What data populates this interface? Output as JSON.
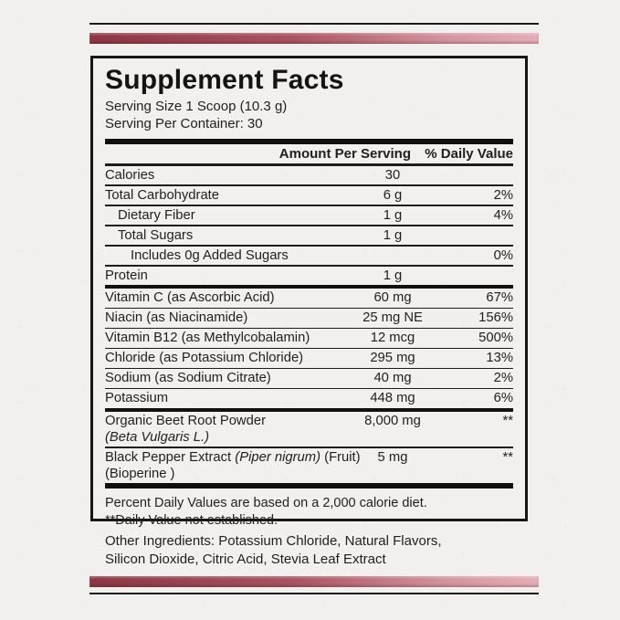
{
  "decorations": {
    "accent_dark": "#8b3642",
    "accent_light": "#e3aeb8",
    "rule_color": "#1c1c1c"
  },
  "label": {
    "title": "Supplement Facts",
    "serving_size": "Serving Size 1 Scoop (10.3 g)",
    "servings_per_container": "Serving Per Container: 30",
    "header": {
      "amount": "Amount Per Serving",
      "daily_value": "% Daily Value"
    },
    "rows": [
      {
        "name": [
          [
            "Calories",
            "r"
          ]
        ],
        "amount": "30",
        "dv": "",
        "indent": 0,
        "sep": "thin"
      },
      {
        "name": [
          [
            "Total Carbohydrate",
            "r"
          ]
        ],
        "amount": "6 g",
        "dv": "2%",
        "indent": 0,
        "sep": "thin"
      },
      {
        "name": [
          [
            "Dietary Fiber",
            "r"
          ]
        ],
        "amount": "1 g",
        "dv": "4%",
        "indent": 1,
        "sep": "thin"
      },
      {
        "name": [
          [
            "Total Sugars",
            "r"
          ]
        ],
        "amount": "1 g",
        "dv": "",
        "indent": 1,
        "sep": "thin"
      },
      {
        "name": [
          [
            "Includes 0g Added Sugars",
            "r"
          ]
        ],
        "amount": "",
        "dv": "0%",
        "indent": 2,
        "sep": "thin"
      },
      {
        "name": [
          [
            "Protein",
            "r"
          ]
        ],
        "amount": "1 g",
        "dv": "",
        "indent": 0,
        "sep": "thick"
      },
      {
        "name": [
          [
            "Vitamin C (as Ascorbic Acid)",
            "r"
          ]
        ],
        "amount": "60 mg",
        "dv": "67%",
        "indent": 0,
        "sep": "thin"
      },
      {
        "name": [
          [
            "Niacin (as Niacinamide)",
            "r"
          ]
        ],
        "amount": "25 mg NE",
        "dv": "156%",
        "indent": 0,
        "sep": "thin"
      },
      {
        "name": [
          [
            "Vitamin B12 (as Methylcobalamin)",
            "r"
          ]
        ],
        "amount": "12 mcg",
        "dv": "500%",
        "indent": 0,
        "sep": "thin"
      },
      {
        "name": [
          [
            "Chloride (as Potassium Chloride)",
            "r"
          ]
        ],
        "amount": "295 mg",
        "dv": "13%",
        "indent": 0,
        "sep": "thin"
      },
      {
        "name": [
          [
            "Sodium (as Sodium Citrate)",
            "r"
          ]
        ],
        "amount": "40 mg",
        "dv": "2%",
        "indent": 0,
        "sep": "thin"
      },
      {
        "name": [
          [
            "Potassium",
            "r"
          ]
        ],
        "amount": "448 mg",
        "dv": "6%",
        "indent": 0,
        "sep": "thick"
      },
      {
        "name": [
          [
            "Organic Beet Root Powder",
            "r"
          ]
        ],
        "name2": [
          [
            "(Beta Vulgaris L.)",
            "i"
          ]
        ],
        "amount": "8,000 mg",
        "dv": "**",
        "indent": 0,
        "sep": "thin"
      },
      {
        "name": [
          [
            "Black Pepper Extract ",
            "r"
          ],
          [
            "(Piper nigrum)",
            "i"
          ],
          [
            " (Fruit)",
            "r"
          ]
        ],
        "name2": [
          [
            "(Bioperine )",
            "r"
          ]
        ],
        "amount": "5 mg",
        "dv": "**",
        "indent": 0,
        "sep": "none"
      }
    ],
    "footnotes": [
      "Percent Daily Values are based on a 2,000 calorie diet.",
      "**Daily Value not established."
    ],
    "other_ingredients_lines": [
      "Other Ingredients:  Potassium Chloride, Natural Flavors,",
      "Silicon Dioxide, Citric Acid, Stevia Leaf Extract"
    ]
  }
}
